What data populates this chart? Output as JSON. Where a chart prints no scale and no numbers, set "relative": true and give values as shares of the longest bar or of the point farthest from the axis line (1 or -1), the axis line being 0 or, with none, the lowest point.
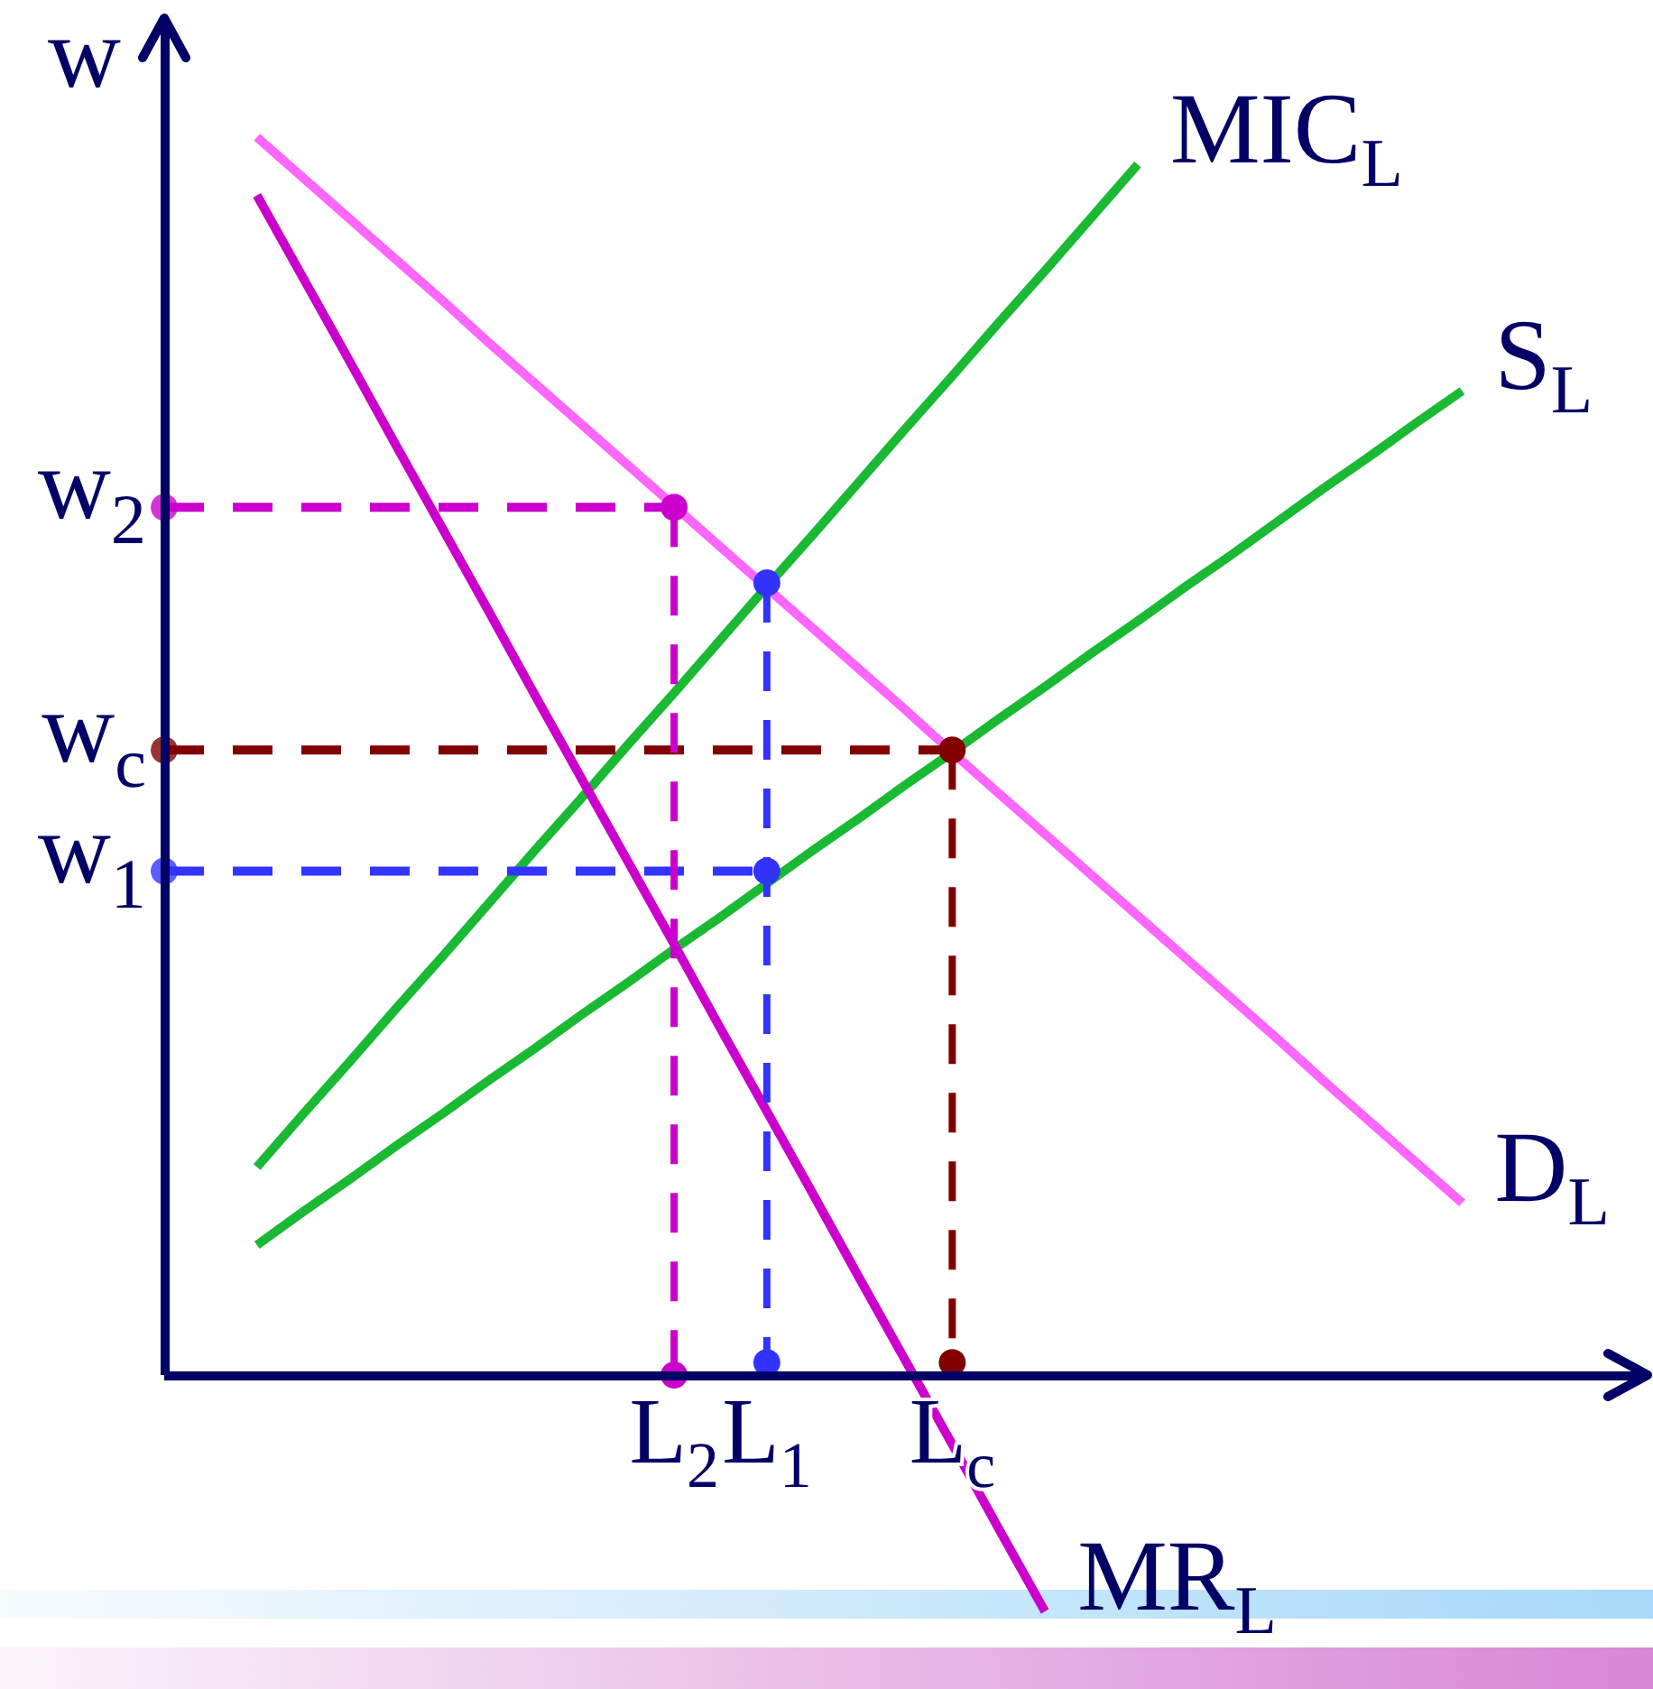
{
  "chart_data": {
    "type": "line",
    "relative": true,
    "ylabel": "w",
    "categories": [
      null,
      null,
      null,
      null,
      null,
      null,
      null,
      null,
      null,
      null,
      null,
      "L$_{2}$",
      null,
      "L$_{1}$",
      null,
      null,
      null,
      "L$_{c}$",
      null,
      null,
      null,
      null,
      null,
      null,
      null,
      null,
      null,
      null,
      null,
      null,
      null,
      null,
      null
    ],
    "series": [
      {
        "name": "MIC$_{L}$",
        "color": "#19b934",
        "values": [
          null,
          null,
          0.168,
          0.211,
          0.253,
          0.296,
          0.338,
          0.381,
          0.424,
          0.466,
          0.509,
          0.551,
          0.594,
          0.637,
          0.679,
          0.722,
          0.765,
          0.807,
          0.85,
          0.892,
          0.935,
          0.978,
          null,
          null,
          null,
          null,
          null,
          null,
          null,
          null,
          null,
          null,
          null
        ]
      },
      {
        "name": "S$_{L}$",
        "color": "#19b934",
        "values": [
          null,
          null,
          0.105,
          0.132,
          0.158,
          0.185,
          0.211,
          0.238,
          0.264,
          0.291,
          0.317,
          0.344,
          0.37,
          0.397,
          0.424,
          0.45,
          0.477,
          0.503,
          0.53,
          0.556,
          0.583,
          0.609,
          0.636,
          0.662,
          0.689,
          0.716,
          0.742,
          0.769,
          0.795,
          null,
          null,
          null,
          null
        ]
      },
      {
        "name": "D$_{L}$",
        "color": "#ff66ff",
        "values": [
          null,
          null,
          1.0,
          0.967,
          0.934,
          0.901,
          0.868,
          0.834,
          0.801,
          0.768,
          0.735,
          0.702,
          0.669,
          0.636,
          0.603,
          0.57,
          0.537,
          0.503,
          0.47,
          0.437,
          0.404,
          0.371,
          0.338,
          0.305,
          0.272,
          0.238,
          0.205,
          0.172,
          0.139,
          null,
          null,
          null,
          null
        ]
      },
      {
        "name": "MR$_{L}$",
        "color": "#cc00cc",
        "values": [
          null,
          null,
          0.953,
          0.886,
          0.819,
          0.751,
          0.684,
          0.617,
          0.549,
          0.482,
          0.415,
          0.348,
          0.28,
          0.213,
          0.146,
          0.078,
          0.011,
          -0.056,
          -0.124,
          -0.191,
          null,
          null,
          null,
          null,
          null,
          null,
          null,
          null,
          null,
          null,
          null,
          null,
          null
        ]
      },
      {
        "color": "#cc00cc",
        "line_style": "dashed",
        "values": [
          0.701,
          0.701,
          0.701,
          0.701,
          0.701,
          0.701,
          0.701,
          0.701,
          0.701,
          0.701,
          0.701,
          0.701,
          null,
          null,
          null,
          null,
          null,
          null,
          null,
          null,
          null,
          null,
          null,
          null,
          null,
          null,
          null,
          null,
          null,
          null,
          null,
          null,
          null
        ]
      },
      {
        "color": "#3333ff",
        "line_style": "dashed",
        "values": [
          0.407,
          0.407,
          0.407,
          0.407,
          0.407,
          0.407,
          0.407,
          0.407,
          0.407,
          0.407,
          0.407,
          0.407,
          0.407,
          0.407,
          null,
          null,
          null,
          null,
          null,
          null,
          null,
          null,
          null,
          null,
          null,
          null,
          null,
          null,
          null,
          null,
          null,
          null,
          null
        ]
      },
      {
        "color": "#800000",
        "line_style": "dashed",
        "values": [
          0.505,
          0.505,
          0.505,
          0.505,
          0.505,
          0.505,
          0.505,
          0.505,
          0.505,
          0.505,
          0.505,
          0.505,
          0.505,
          0.505,
          0.505,
          0.505,
          0.505,
          0.505,
          null,
          null,
          null,
          null,
          null,
          null,
          null,
          null,
          null,
          null,
          null,
          null,
          null,
          null,
          null
        ]
      },
      {
        "color": "#cc00cc",
        "line_style": "dashed",
        "marker": "circle",
        "x": [
          "L$_{2}$",
          "L$_{2}$"
        ],
        "values": [
          0.701,
          0
        ]
      },
      {
        "color": "#3333ff",
        "line_style": "dashed",
        "marker": "circle",
        "x": [
          "L$_{1}$",
          "L$_{1}$",
          "L$_{1}$"
        ],
        "values": [
          0.64,
          0.407,
          0.01
        ]
      },
      {
        "color": "#800000",
        "line_style": "dashed",
        "marker": "circle",
        "x": [
          "L$_{c}$",
          "L$_{c}$"
        ],
        "values": [
          0.505,
          0.01
        ]
      },
      {
        "type": "scatter",
        "color": "#cc00cc",
        "marker": "circle",
        "values": [
          0.701,
          null,
          null,
          null,
          null,
          null,
          null,
          null,
          null,
          null,
          null,
          null,
          null,
          null,
          null,
          null,
          null,
          null,
          null,
          null,
          null,
          null,
          null,
          null,
          null,
          null,
          null,
          null,
          null,
          null,
          null,
          null,
          null
        ]
      },
      {
        "type": "scatter",
        "color": "#3333ff",
        "marker": "circle",
        "values": [
          0.407,
          null,
          null,
          null,
          null,
          null,
          null,
          null,
          null,
          null,
          null,
          null,
          null,
          null,
          null,
          null,
          null,
          null,
          null,
          null,
          null,
          null,
          null,
          null,
          null,
          null,
          null,
          null,
          null,
          null,
          null,
          null,
          null
        ]
      },
      {
        "type": "scatter",
        "color": "#800000",
        "marker": "circle",
        "values": [
          0.505,
          null,
          null,
          null,
          null,
          null,
          null,
          null,
          null,
          null,
          null,
          null,
          null,
          null,
          null,
          null,
          null,
          null,
          null,
          null,
          null,
          null,
          null,
          null,
          null,
          null,
          null,
          null,
          null,
          null,
          null,
          null,
          null
        ]
      }
    ],
    "annotations": [
      "w$_{2}$",
      "w$_{c}$",
      "w$_{1}$"
    ]
  }
}
